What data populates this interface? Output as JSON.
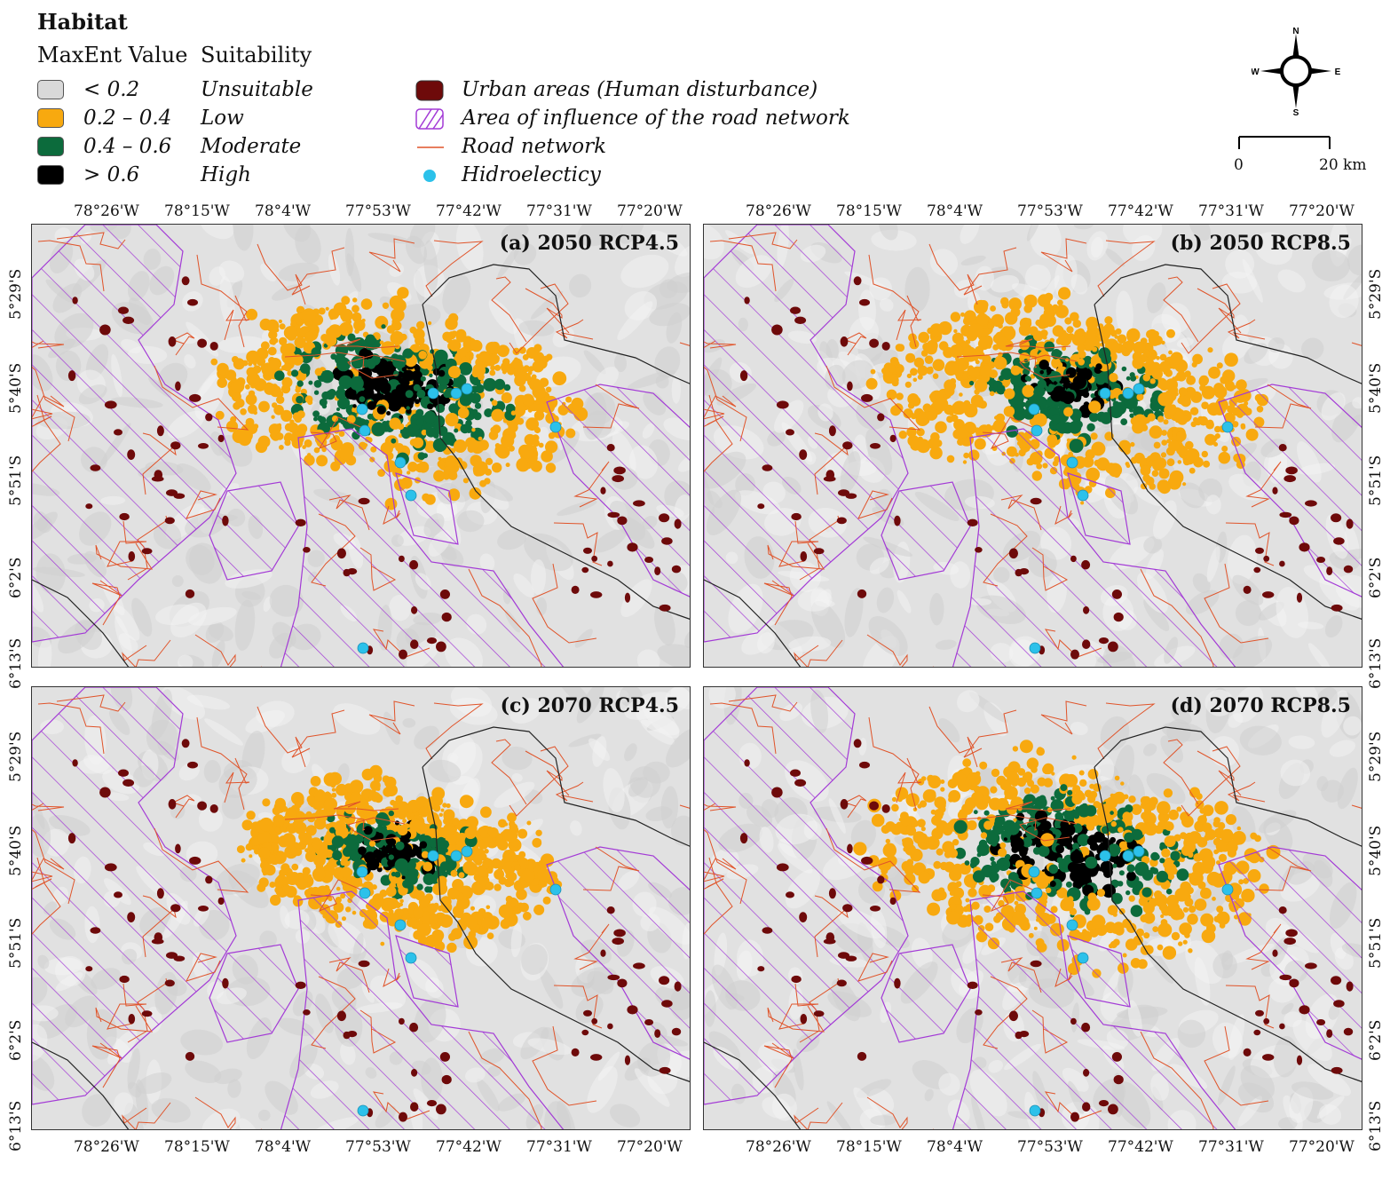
{
  "legend": {
    "title": "Habitat",
    "col_value": "MaxEnt Value",
    "col_suitability": "Suitability",
    "classes": [
      {
        "value": "< 0.2",
        "suitability": "Unsuitable",
        "color": "#d9d9d9"
      },
      {
        "value": "0.2 – 0.4",
        "suitability": "Low",
        "color": "#f8a90f"
      },
      {
        "value": "0.4 – 0.6",
        "suitability": "Moderate",
        "color": "#0c6b3c"
      },
      {
        "value": "> 0.6",
        "suitability": "High",
        "color": "#000000"
      }
    ],
    "overlays": [
      {
        "label": "Urban areas (Human disturbance)",
        "color": "#6e0a0a"
      },
      {
        "label": "Area of influence of the road network",
        "color": "#a33ad6"
      },
      {
        "label": "Road network",
        "color": "#e0542a"
      },
      {
        "label": "Hidroelecticy",
        "color": "#2cc1ea"
      }
    ]
  },
  "compass": {
    "n": "N",
    "s": "S",
    "e": "E",
    "w": "W"
  },
  "scale": {
    "start": "0",
    "end": "20 km"
  },
  "longitude_ticks": [
    "78°26'W",
    "78°15'W",
    "78°4'W",
    "77°53'W",
    "77°42'W",
    "77°31'W",
    "77°20'W"
  ],
  "latitude_ticks": [
    "5°29'S",
    "5°40'S",
    "5°51'S",
    "6°2'S",
    "6°13'S"
  ],
  "panels": [
    {
      "title": "(a) 2050 RCP4.5",
      "high": 0.55,
      "moderate": 0.75,
      "spread": 1.0
    },
    {
      "title": "(b) 2050 RCP8.5",
      "high": 0.35,
      "moderate": 0.6,
      "spread": 1.05
    },
    {
      "title": "(c) 2070 RCP4.5",
      "high": 0.4,
      "moderate": 0.55,
      "spread": 0.85
    },
    {
      "title": "(d) 2070 RCP8.5",
      "high": 0.6,
      "moderate": 0.7,
      "spread": 1.1
    }
  ]
}
